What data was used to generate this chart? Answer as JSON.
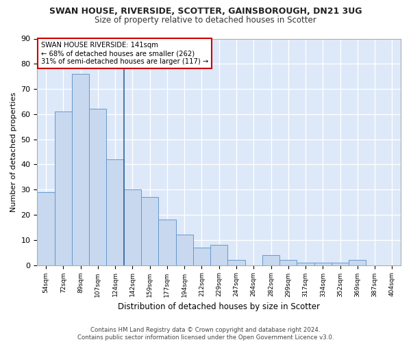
{
  "title": "SWAN HOUSE, RIVERSIDE, SCOTTER, GAINSBOROUGH, DN21 3UG",
  "subtitle": "Size of property relative to detached houses in Scotter",
  "xlabel": "Distribution of detached houses by size in Scotter",
  "ylabel": "Number of detached properties",
  "bar_labels": [
    "54sqm",
    "72sqm",
    "89sqm",
    "107sqm",
    "124sqm",
    "142sqm",
    "159sqm",
    "177sqm",
    "194sqm",
    "212sqm",
    "229sqm",
    "247sqm",
    "264sqm",
    "282sqm",
    "299sqm",
    "317sqm",
    "334sqm",
    "352sqm",
    "369sqm",
    "387sqm",
    "404sqm"
  ],
  "bar_values": [
    29,
    61,
    76,
    62,
    42,
    30,
    27,
    18,
    12,
    7,
    8,
    2,
    0,
    4,
    2,
    1,
    1,
    1,
    2,
    0,
    0
  ],
  "bar_color": "#c8d8ef",
  "bar_edge_color": "#6699cc",
  "background_color": "#dde8f8",
  "grid_color": "#ffffff",
  "property_label": "SWAN HOUSE RIVERSIDE: 141sqm",
  "annotation_line1": "← 68% of detached houses are smaller (262)",
  "annotation_line2": "31% of semi-detached houses are larger (117) →",
  "annotation_box_color": "#ffffff",
  "annotation_border_color": "#cc0000",
  "vline_color": "#336699",
  "ylim": [
    0,
    90
  ],
  "fig_bg": "#ffffff",
  "footer1": "Contains HM Land Registry data © Crown copyright and database right 2024.",
  "footer2": "Contains public sector information licensed under the Open Government Licence v3.0."
}
